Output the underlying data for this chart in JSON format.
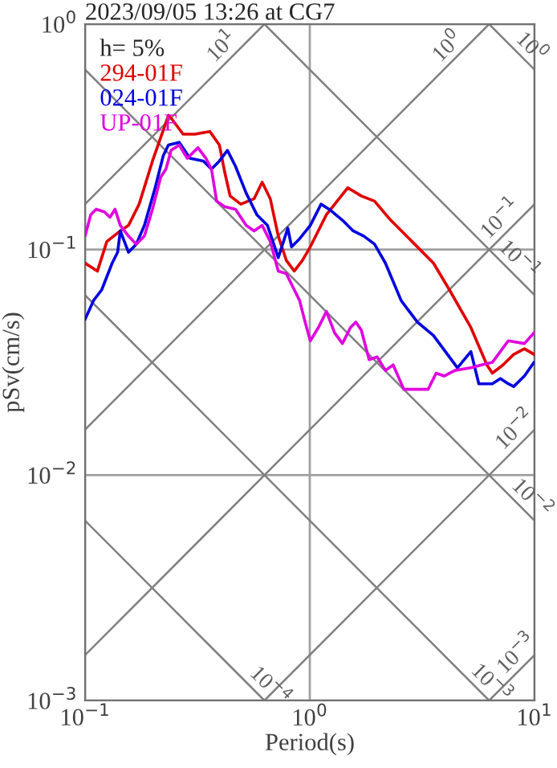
{
  "chart_data": {
    "type": "line",
    "title": "2023/09/05 13:26 at CG7",
    "xlabel": "Period(s)",
    "ylabel": "pSv(cm/s)",
    "legend_title": "h= 5%",
    "log": "xy",
    "grid": true,
    "legend": "top left",
    "marker": "none",
    "line_style": "solid",
    "xlim": [
      0.1,
      10
    ],
    "ylim": [
      0.001,
      1
    ],
    "xticks": [
      {
        "value": 0.1,
        "label": "10$^{−1}$"
      },
      {
        "value": 1,
        "label": "10$^{0}$"
      },
      {
        "value": 10,
        "label": "10$^{1}$"
      }
    ],
    "yticks": [
      {
        "value": 0.001,
        "label": "10$^{−3}$"
      },
      {
        "value": 0.01,
        "label": "10$^{−2}$"
      },
      {
        "value": 0.1,
        "label": "10$^{−1}$"
      },
      {
        "value": 1,
        "label": "10$^{0}$"
      }
    ],
    "series": [
      {
        "name": "294-01F",
        "color": "#e00000",
        "x": [
          0.1,
          0.1135,
          0.125,
          0.1435,
          0.156,
          0.174,
          0.1995,
          0.235,
          0.2415,
          0.273,
          0.309,
          0.359,
          0.396,
          0.418,
          0.442,
          0.493,
          0.565,
          0.614,
          0.667,
          0.724,
          0.786,
          0.853,
          0.927,
          1.005,
          1.186,
          1.476,
          1.694,
          1.941,
          2.29,
          2.85,
          3.55,
          4.18,
          5.21,
          6.14,
          6.49,
          7.24,
          8.08,
          9.02,
          9.95
        ],
        "values": [
          0.0871,
          0.0803,
          0.1086,
          0.121,
          0.128,
          0.159,
          0.247,
          0.394,
          0.383,
          0.325,
          0.325,
          0.334,
          0.291,
          0.221,
          0.173,
          0.159,
          0.168,
          0.199,
          0.168,
          0.1148,
          0.0896,
          0.0803,
          0.0896,
          0.1028,
          0.1429,
          0.188,
          0.173,
          0.164,
          0.135,
          0.1086,
          0.0871,
          0.0663,
          0.0451,
          0.0308,
          0.0283,
          0.0308,
          0.0343,
          0.0363,
          0.0343
        ]
      },
      {
        "name": "024-01F",
        "color": "#0000e0",
        "x": [
          0.1,
          0.109,
          0.1186,
          0.132,
          0.1396,
          0.1435,
          0.156,
          0.169,
          0.1837,
          0.205,
          0.2228,
          0.235,
          0.2624,
          0.293,
          0.336,
          0.365,
          0.396,
          0.43,
          0.467,
          0.521,
          0.581,
          0.648,
          0.685,
          0.724,
          0.764,
          0.798,
          0.83,
          0.901,
          1.005,
          1.122,
          1.219,
          1.397,
          1.56,
          1.738,
          1.941,
          2.17,
          2.55,
          3.01,
          3.55,
          4.18,
          4.54,
          5.21,
          5.65,
          6.49,
          7.05,
          7.64,
          8.08,
          9.02,
          9.95
        ],
        "values": [
          0.049,
          0.0594,
          0.0663,
          0.0871,
          0.0973,
          0.121,
          0.0973,
          0.1057,
          0.128,
          0.188,
          0.261,
          0.291,
          0.299,
          0.254,
          0.247,
          0.2275,
          0.247,
          0.2756,
          0.234,
          0.178,
          0.1429,
          0.128,
          0.1086,
          0.0921,
          0.1086,
          0.1245,
          0.1028,
          0.1117,
          0.128,
          0.159,
          0.151,
          0.135,
          0.121,
          0.1148,
          0.1057,
          0.0871,
          0.0594,
          0.0477,
          0.0416,
          0.0334,
          0.0299,
          0.0353,
          0.0254,
          0.0254,
          0.0268,
          0.0254,
          0.0247,
          0.0275,
          0.0316
        ]
      },
      {
        "name": "UP-01F",
        "color": "#e000e0",
        "x": [
          0.1,
          0.106,
          0.112,
          0.122,
          0.129,
          0.136,
          0.1435,
          0.156,
          0.169,
          0.1837,
          0.1995,
          0.217,
          0.229,
          0.2415,
          0.2624,
          0.285,
          0.318,
          0.345,
          0.365,
          0.385,
          0.418,
          0.467,
          0.521,
          0.565,
          0.614,
          0.667,
          0.724,
          0.786,
          0.853,
          0.901,
          0.953,
          1.005,
          1.092,
          1.186,
          1.288,
          1.397,
          1.517,
          1.603,
          1.694,
          1.837,
          1.995,
          2.17,
          2.35,
          2.62,
          2.93,
          3.36,
          3.65,
          3.96,
          4.42,
          5.21,
          5.81,
          6.49,
          7.64,
          9.02,
          9.95
        ],
        "values": [
          0.1148,
          0.1429,
          0.151,
          0.147,
          0.139,
          0.151,
          0.128,
          0.1148,
          0.1057,
          0.1148,
          0.151,
          0.2096,
          0.2275,
          0.2756,
          0.291,
          0.254,
          0.283,
          0.254,
          0.2275,
          0.164,
          0.155,
          0.151,
          0.128,
          0.121,
          0.128,
          0.1086,
          0.0803,
          0.0782,
          0.0663,
          0.0594,
          0.0477,
          0.0394,
          0.0451,
          0.0532,
          0.0428,
          0.0383,
          0.0451,
          0.0477,
          0.044,
          0.0325,
          0.0334,
          0.0291,
          0.0308,
          0.024,
          0.024,
          0.024,
          0.0283,
          0.0275,
          0.0291,
          0.0299,
          0.0308,
          0.0316,
          0.0394,
          0.0383,
          0.0428
        ]
      },
      {
        "color": "#808080",
        "x": [
          0.1,
          0.628
        ],
        "values": [
          0.159,
          1
        ]
      },
      {
        "color": "#808080",
        "x": [
          0.1,
          6.28
        ],
        "values": [
          0.0159,
          1
        ]
      },
      {
        "color": "#808080",
        "x": [
          0.1,
          10
        ],
        "values": [
          0.00159,
          0.159
        ]
      },
      {
        "color": "#808080",
        "x": [
          0.628,
          10
        ],
        "values": [
          0.001,
          0.0159
        ]
      },
      {
        "color": "#808080",
        "x": [
          6.28,
          10
        ],
        "values": [
          0.001,
          0.00159
        ]
      },
      {
        "color": "#808080",
        "x": [
          6.28,
          10
        ],
        "values": [
          1,
          0.628
        ]
      },
      {
        "color": "#808080",
        "x": [
          0.628,
          10
        ],
        "values": [
          1,
          0.0628
        ]
      },
      {
        "color": "#808080",
        "x": [
          0.1,
          10
        ],
        "values": [
          0.628,
          0.00628
        ]
      },
      {
        "color": "#808080",
        "x": [
          0.1,
          6.28
        ],
        "values": [
          0.0628,
          0.001
        ]
      },
      {
        "color": "#808080",
        "x": [
          0.1,
          0.628
        ],
        "values": [
          0.00628,
          0.001
        ]
      }
    ],
    "annotations": [
      {
        "text": "10$^{1}$",
        "x": 0.45,
        "y": 0.72
      },
      {
        "text": "10$^{0}$",
        "x": 4.54,
        "y": 0.72
      },
      {
        "text": "10$^{0}$",
        "x": 8.77,
        "y": 0.716
      },
      {
        "text": "10$^{−1}$",
        "x": 7.8,
        "y": 0.124
      },
      {
        "text": "10$^{−1}$",
        "x": 7.7,
        "y": 0.0816
      },
      {
        "text": "10$^{−2}$",
        "x": 9.06,
        "y": 0.0144
      },
      {
        "text": "10$^{−2}$",
        "x": 8.8,
        "y": 0.00714
      },
      {
        "text": "10$^{−3}$",
        "x": 9.2,
        "y": 0.00146
      },
      {
        "text": "10$^{−3}$",
        "x": 5.8,
        "y": 0.00108
      },
      {
        "text": "10$^{−4}$",
        "x": 0.601,
        "y": 0.00105
      }
    ]
  }
}
